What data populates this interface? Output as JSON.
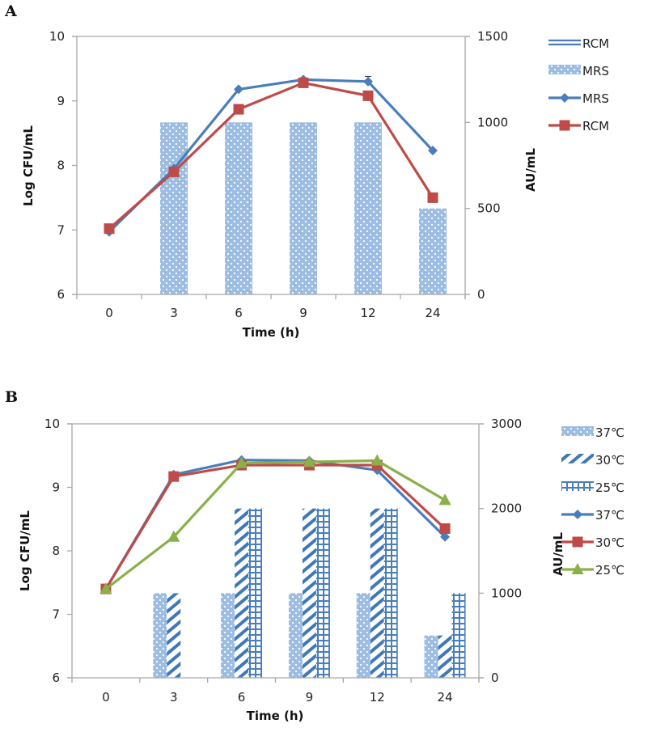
{
  "chart_data": [
    {
      "panel": "A",
      "type": "bar+line",
      "xlabel": "Time (h)",
      "ylabel": "Log CFU/mL",
      "y2label": "AU/mL",
      "categories": [
        "0",
        "3",
        "6",
        "9",
        "12",
        "24"
      ],
      "ylim": [
        6,
        10
      ],
      "yticks": [
        6,
        7,
        8,
        9,
        10
      ],
      "y2lim": [
        0,
        1500
      ],
      "y2ticks": [
        0,
        500,
        1000,
        1500
      ],
      "bar_series": [
        {
          "name": "RCM",
          "legend_style": "double-line",
          "values": [
            0,
            0,
            0,
            0,
            0,
            0
          ],
          "color": "#4a7ebb"
        },
        {
          "name": "MRS",
          "pattern": "dots",
          "values": [
            0,
            1000,
            1000,
            1000,
            1000,
            500
          ],
          "color": "#8eb4e3"
        }
      ],
      "line_series": [
        {
          "name": "MRS",
          "marker": "diamond",
          "color": "#4a7ebb",
          "values": [
            6.97,
            7.95,
            9.18,
            9.33,
            9.3,
            8.23
          ],
          "errors": [
            0,
            0,
            0,
            0.03,
            0.08,
            0
          ]
        },
        {
          "name": "RCM",
          "marker": "square",
          "color": "#be4b48",
          "values": [
            7.02,
            7.9,
            8.87,
            9.28,
            9.08,
            7.5
          ],
          "errors": [
            0,
            0,
            0,
            0,
            0.03,
            0
          ]
        }
      ],
      "legend": [
        "RCM",
        "MRS",
        "MRS",
        "RCM"
      ],
      "legend_position": "right",
      "grid": false
    },
    {
      "panel": "B",
      "type": "bar+line",
      "xlabel": "Time (h)",
      "ylabel": "Log CFU/mL",
      "y2label": "AU/mL",
      "categories": [
        "0",
        "3",
        "6",
        "9",
        "12",
        "24"
      ],
      "ylim": [
        6,
        10
      ],
      "yticks": [
        6,
        7,
        8,
        9,
        10
      ],
      "y2lim": [
        0,
        3000
      ],
      "y2ticks": [
        0,
        1000,
        2000,
        3000
      ],
      "bar_series": [
        {
          "name": "37℃",
          "pattern": "dots",
          "values": [
            0,
            1000,
            1000,
            1000,
            1000,
            500
          ],
          "color": "#8eb4e3"
        },
        {
          "name": "30℃",
          "pattern": "diagonal",
          "values": [
            0,
            1000,
            2000,
            2000,
            2000,
            500
          ],
          "color": "#4a7ebb"
        },
        {
          "name": "25℃",
          "pattern": "grid",
          "values": [
            0,
            0,
            2000,
            2000,
            2000,
            1000
          ],
          "color": "#4a7ebb"
        }
      ],
      "line_series": [
        {
          "name": "37℃",
          "marker": "diamond",
          "color": "#4a7ebb",
          "values": [
            7.4,
            9.2,
            9.43,
            9.42,
            9.27,
            8.22
          ]
        },
        {
          "name": "30℃",
          "marker": "square",
          "color": "#be4b48",
          "values": [
            7.4,
            9.17,
            9.35,
            9.35,
            9.35,
            8.35
          ]
        },
        {
          "name": "25℃",
          "marker": "triangle",
          "color": "#8ab04a",
          "values": [
            7.4,
            8.22,
            9.38,
            9.4,
            9.42,
            8.8
          ]
        }
      ],
      "legend": [
        "37℃",
        "30℃",
        "25℃",
        "37℃",
        "30℃",
        "25℃"
      ],
      "legend_position": "right",
      "grid": false
    }
  ]
}
